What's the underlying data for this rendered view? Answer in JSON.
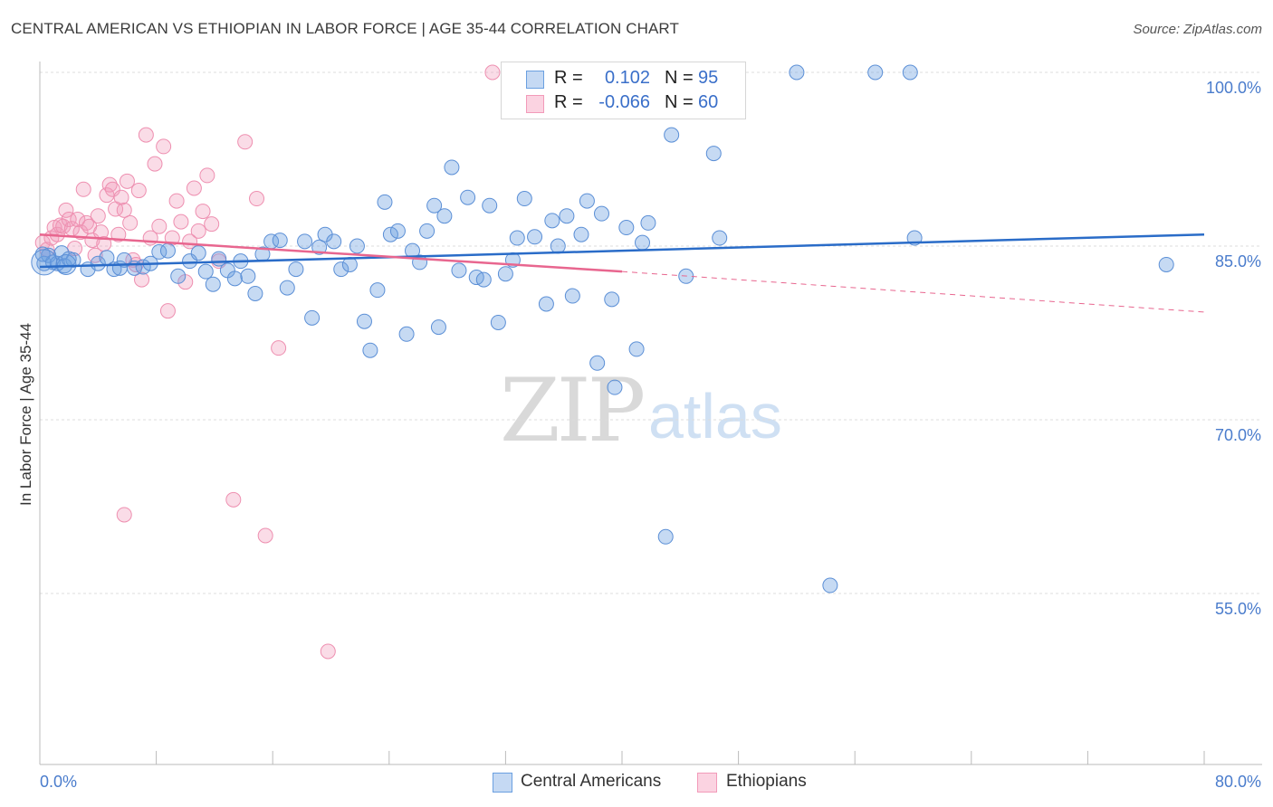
{
  "title": "CENTRAL AMERICAN VS ETHIOPIAN IN LABOR FORCE | AGE 35-44 CORRELATION CHART",
  "source": "Source: ZipAtlas.com",
  "watermark": {
    "zip": "ZIP",
    "atlas": "atlas"
  },
  "colors": {
    "blue": "#6a9fe0",
    "blue_line": "#2a6cc8",
    "pink": "#f29ab9",
    "pink_line": "#e8668f",
    "tick_text": "#4a7ccc"
  },
  "legend_top": [
    {
      "r_label": "R =",
      "r_value": "0.102",
      "n_label": "N =",
      "n_value": "95"
    },
    {
      "r_label": "R =",
      "r_value": "-0.066",
      "n_label": "N =",
      "n_value": "60"
    }
  ],
  "legend_bottom": [
    "Central Americans",
    "Ethiopians"
  ],
  "chart_data": {
    "type": "scatter",
    "title": "CENTRAL AMERICAN VS ETHIOPIAN IN LABOR FORCE | AGE 35-44 CORRELATION CHART",
    "ylabel": "In Labor Force | Age 35-44",
    "xlabel": "",
    "xlim": [
      0,
      80
    ],
    "ylim": [
      40,
      101.5
    ],
    "x_tick_labels": [
      "0.0%",
      "80.0%"
    ],
    "y_ticks": [
      55,
      70,
      85,
      100
    ],
    "y_tick_labels": [
      "55.0%",
      "70.0%",
      "85.0%",
      "100.0%"
    ],
    "grid": "horizontal dashed",
    "legend_position": "top-center",
    "series": [
      {
        "name": "Central Americans",
        "R": 0.102,
        "N": 95,
        "trend": {
          "x": [
            0,
            80
          ],
          "y": [
            83.2,
            86.0
          ]
        },
        "points": [
          [
            0.3,
            83.5
          ],
          [
            0.6,
            84.2
          ],
          [
            0.9,
            83.6
          ],
          [
            1.2,
            83.5
          ],
          [
            1.7,
            83.3
          ],
          [
            2.3,
            83.8
          ],
          [
            3.3,
            83.0
          ],
          [
            4.0,
            83.5
          ],
          [
            4.6,
            84.0
          ],
          [
            5.1,
            83.0
          ],
          [
            5.5,
            83.1
          ],
          [
            5.8,
            83.8
          ],
          [
            6.5,
            83.1
          ],
          [
            7.1,
            83.2
          ],
          [
            7.6,
            83.5
          ],
          [
            8.2,
            84.5
          ],
          [
            8.8,
            84.6
          ],
          [
            9.5,
            82.4
          ],
          [
            10.3,
            83.7
          ],
          [
            10.9,
            84.4
          ],
          [
            11.4,
            82.8
          ],
          [
            11.9,
            81.7
          ],
          [
            12.3,
            83.9
          ],
          [
            12.9,
            82.9
          ],
          [
            13.4,
            82.2
          ],
          [
            13.8,
            83.7
          ],
          [
            14.3,
            82.4
          ],
          [
            14.8,
            80.9
          ],
          [
            15.3,
            84.3
          ],
          [
            15.9,
            85.4
          ],
          [
            16.5,
            85.5
          ],
          [
            17.0,
            81.4
          ],
          [
            17.6,
            83.0
          ],
          [
            18.2,
            85.4
          ],
          [
            18.7,
            78.8
          ],
          [
            19.2,
            84.9
          ],
          [
            19.6,
            86.0
          ],
          [
            20.2,
            85.4
          ],
          [
            20.7,
            83.0
          ],
          [
            21.3,
            83.4
          ],
          [
            21.8,
            85.0
          ],
          [
            22.3,
            78.5
          ],
          [
            22.7,
            76.0
          ],
          [
            23.2,
            81.2
          ],
          [
            23.7,
            88.8
          ],
          [
            24.1,
            86.0
          ],
          [
            24.6,
            86.3
          ],
          [
            25.2,
            77.4
          ],
          [
            25.6,
            84.6
          ],
          [
            26.1,
            83.6
          ],
          [
            26.6,
            86.3
          ],
          [
            27.1,
            88.5
          ],
          [
            27.4,
            78.0
          ],
          [
            27.8,
            87.6
          ],
          [
            28.3,
            91.8
          ],
          [
            28.8,
            82.9
          ],
          [
            29.4,
            89.2
          ],
          [
            30.0,
            82.3
          ],
          [
            30.5,
            82.1
          ],
          [
            30.9,
            88.5
          ],
          [
            31.5,
            78.4
          ],
          [
            32.0,
            82.6
          ],
          [
            32.5,
            83.8
          ],
          [
            32.8,
            85.7
          ],
          [
            33.3,
            89.1
          ],
          [
            34.0,
            85.8
          ],
          [
            34.8,
            80.0
          ],
          [
            35.2,
            87.2
          ],
          [
            35.6,
            85.0
          ],
          [
            36.2,
            87.6
          ],
          [
            36.6,
            80.7
          ],
          [
            37.2,
            86.0
          ],
          [
            37.6,
            88.9
          ],
          [
            38.3,
            74.9
          ],
          [
            38.6,
            87.8
          ],
          [
            39.3,
            80.4
          ],
          [
            39.5,
            72.8
          ],
          [
            40.3,
            86.6
          ],
          [
            41.0,
            76.1
          ],
          [
            41.4,
            85.3
          ],
          [
            41.8,
            87.0
          ],
          [
            43.0,
            59.9
          ],
          [
            43.4,
            94.6
          ],
          [
            44.4,
            82.4
          ],
          [
            46.3,
            93.0
          ],
          [
            46.7,
            85.7
          ],
          [
            52.0,
            100.0
          ],
          [
            54.3,
            55.7
          ],
          [
            57.4,
            100.0
          ],
          [
            59.8,
            100.0
          ],
          [
            60.1,
            85.7
          ],
          [
            77.4,
            83.4
          ],
          [
            0.2,
            84.3
          ],
          [
            1.5,
            84.4
          ],
          [
            2.0,
            83.9
          ]
        ]
      },
      {
        "name": "Ethiopians",
        "R": -0.066,
        "N": 60,
        "trend": {
          "x": [
            0,
            40
          ],
          "y": [
            86.0,
            82.8
          ]
        },
        "trend_dashed": {
          "x": [
            40,
            80
          ],
          "y": [
            82.8,
            79.3
          ]
        },
        "points": [
          [
            0.2,
            85.3
          ],
          [
            0.5,
            84.7
          ],
          [
            0.8,
            85.7
          ],
          [
            1.0,
            86.6
          ],
          [
            1.2,
            86.0
          ],
          [
            1.4,
            86.8
          ],
          [
            1.6,
            86.7
          ],
          [
            1.8,
            88.1
          ],
          [
            2.0,
            87.3
          ],
          [
            2.2,
            86.5
          ],
          [
            2.4,
            84.8
          ],
          [
            2.6,
            87.3
          ],
          [
            2.8,
            86.2
          ],
          [
            3.0,
            89.9
          ],
          [
            3.2,
            87.0
          ],
          [
            3.4,
            86.7
          ],
          [
            3.6,
            85.5
          ],
          [
            3.8,
            84.2
          ],
          [
            4.0,
            87.6
          ],
          [
            4.2,
            86.2
          ],
          [
            4.4,
            85.2
          ],
          [
            4.6,
            89.4
          ],
          [
            4.8,
            90.3
          ],
          [
            5.0,
            89.9
          ],
          [
            5.2,
            88.2
          ],
          [
            5.4,
            86.0
          ],
          [
            5.6,
            89.2
          ],
          [
            5.8,
            88.1
          ],
          [
            6.0,
            90.6
          ],
          [
            6.2,
            87.0
          ],
          [
            6.4,
            83.8
          ],
          [
            6.6,
            83.4
          ],
          [
            6.8,
            89.8
          ],
          [
            7.0,
            82.1
          ],
          [
            7.3,
            94.6
          ],
          [
            7.6,
            85.7
          ],
          [
            7.9,
            92.1
          ],
          [
            8.2,
            86.7
          ],
          [
            8.5,
            93.6
          ],
          [
            8.8,
            79.4
          ],
          [
            9.1,
            85.7
          ],
          [
            9.4,
            88.9
          ],
          [
            9.7,
            87.1
          ],
          [
            10.0,
            81.9
          ],
          [
            10.3,
            85.4
          ],
          [
            10.6,
            90.0
          ],
          [
            10.9,
            86.3
          ],
          [
            11.2,
            88.0
          ],
          [
            11.5,
            91.1
          ],
          [
            11.8,
            86.9
          ],
          [
            12.3,
            83.7
          ],
          [
            13.3,
            63.1
          ],
          [
            14.1,
            94.0
          ],
          [
            14.9,
            89.1
          ],
          [
            15.5,
            60.0
          ],
          [
            16.4,
            76.2
          ],
          [
            19.8,
            50.0
          ],
          [
            5.8,
            61.8
          ],
          [
            31.1,
            100.0
          ],
          [
            33.9,
            100.0
          ]
        ]
      }
    ]
  }
}
